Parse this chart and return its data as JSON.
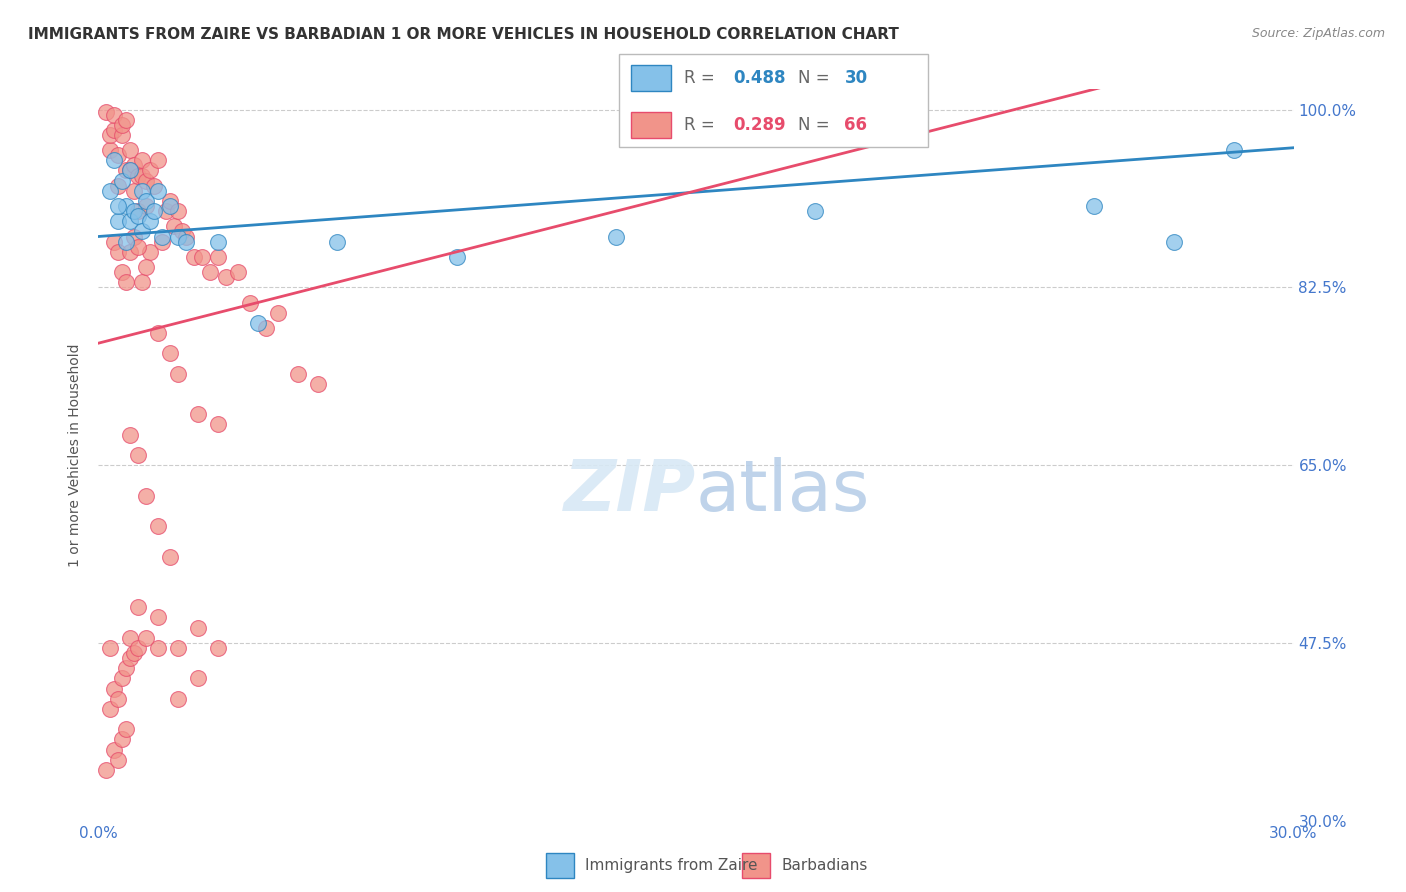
{
  "title": "IMMIGRANTS FROM ZAIRE VS BARBADIAN 1 OR MORE VEHICLES IN HOUSEHOLD CORRELATION CHART",
  "source": "Source: ZipAtlas.com",
  "ylabel": "1 or more Vehicles in Household",
  "xlim": [
    0.0,
    0.3
  ],
  "ylim": [
    0.3,
    1.02
  ],
  "yticks": [
    0.3,
    0.475,
    0.65,
    0.825,
    1.0
  ],
  "ytick_labels_right": [
    "30.0%",
    "47.5%",
    "65.0%",
    "82.5%",
    "100.0%"
  ],
  "xtick_labels": [
    "0.0%",
    "",
    "",
    "",
    "",
    "",
    "30.0%"
  ],
  "blue_R": 0.488,
  "blue_N": 30,
  "pink_R": 0.289,
  "pink_N": 66,
  "legend_label_blue": "Immigrants from Zaire",
  "legend_label_pink": "Barbadians",
  "blue_color": "#85C1E9",
  "pink_color": "#F1948A",
  "blue_line_color": "#2E86C1",
  "pink_line_color": "#E74C6C",
  "background_color": "#ffffff",
  "grid_color": "#cccccc",
  "axis_label_color": "#4477cc",
  "title_color": "#333333",
  "blue_x": [
    0.003,
    0.004,
    0.005,
    0.006,
    0.007,
    0.008,
    0.008,
    0.009,
    0.01,
    0.011,
    0.011,
    0.012,
    0.013,
    0.014,
    0.015,
    0.016,
    0.018,
    0.02,
    0.022,
    0.03,
    0.04,
    0.06,
    0.09,
    0.13,
    0.18,
    0.25,
    0.27,
    0.005,
    0.007,
    0.285
  ],
  "blue_y": [
    0.92,
    0.95,
    0.89,
    0.93,
    0.905,
    0.89,
    0.94,
    0.9,
    0.895,
    0.92,
    0.88,
    0.91,
    0.89,
    0.9,
    0.92,
    0.875,
    0.905,
    0.875,
    0.87,
    0.87,
    0.79,
    0.87,
    0.855,
    0.875,
    0.9,
    0.905,
    0.87,
    0.905,
    0.87,
    0.96
  ],
  "pink_x": [
    0.002,
    0.003,
    0.003,
    0.004,
    0.004,
    0.005,
    0.005,
    0.006,
    0.006,
    0.007,
    0.007,
    0.008,
    0.008,
    0.009,
    0.009,
    0.01,
    0.01,
    0.011,
    0.011,
    0.012,
    0.012,
    0.013,
    0.013,
    0.014,
    0.015,
    0.016,
    0.017,
    0.018,
    0.019,
    0.02,
    0.021,
    0.022,
    0.024,
    0.026,
    0.028,
    0.03,
    0.032,
    0.035,
    0.038,
    0.042,
    0.045,
    0.05,
    0.055,
    0.004,
    0.005,
    0.006,
    0.007,
    0.008,
    0.009,
    0.01,
    0.011,
    0.012,
    0.015,
    0.018,
    0.02,
    0.025,
    0.03,
    0.008,
    0.01,
    0.012,
    0.015,
    0.018,
    0.03,
    0.025,
    0.02,
    0.015
  ],
  "pink_y": [
    0.998,
    0.96,
    0.975,
    0.98,
    0.995,
    0.925,
    0.955,
    0.975,
    0.985,
    0.94,
    0.99,
    0.94,
    0.96,
    0.92,
    0.945,
    0.9,
    0.935,
    0.935,
    0.95,
    0.905,
    0.93,
    0.94,
    0.86,
    0.925,
    0.95,
    0.87,
    0.9,
    0.91,
    0.885,
    0.9,
    0.88,
    0.875,
    0.855,
    0.855,
    0.84,
    0.855,
    0.835,
    0.84,
    0.81,
    0.785,
    0.8,
    0.74,
    0.73,
    0.87,
    0.86,
    0.84,
    0.83,
    0.86,
    0.875,
    0.865,
    0.83,
    0.845,
    0.78,
    0.76,
    0.74,
    0.7,
    0.69,
    0.68,
    0.66,
    0.62,
    0.59,
    0.56,
    0.47,
    0.44,
    0.42,
    0.5
  ],
  "pink_low_x": [
    0.003,
    0.008,
    0.01,
    0.015,
    0.02,
    0.025,
    0.002,
    0.004,
    0.005,
    0.006,
    0.007,
    0.003,
    0.004,
    0.005,
    0.006,
    0.007,
    0.008,
    0.009,
    0.01,
    0.012
  ],
  "pink_low_y": [
    0.47,
    0.48,
    0.51,
    0.47,
    0.47,
    0.49,
    0.35,
    0.37,
    0.36,
    0.38,
    0.39,
    0.41,
    0.43,
    0.42,
    0.44,
    0.45,
    0.46,
    0.465,
    0.47,
    0.48
  ]
}
